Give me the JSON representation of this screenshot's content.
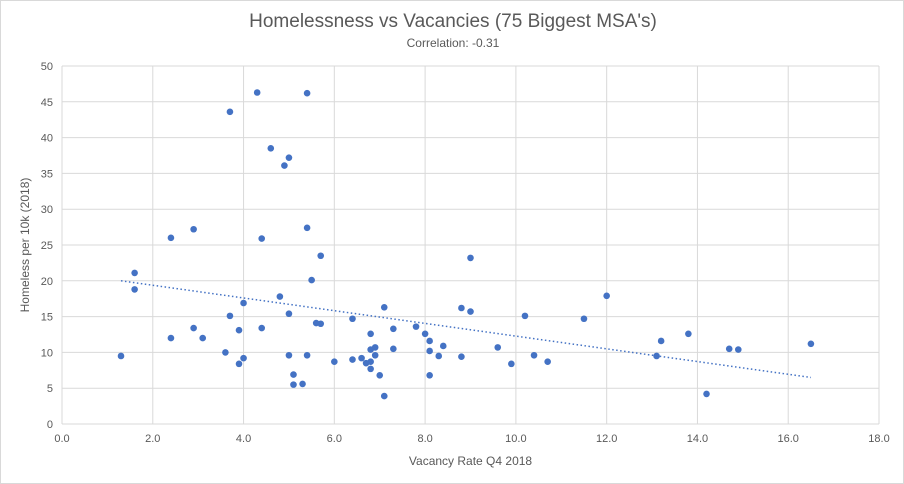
{
  "chart_data": {
    "type": "scatter",
    "title": "Homelessness vs Vacancies (75 Biggest MSA's)",
    "subtitle": "Correlation: -0.31",
    "xlabel": "Vacancy Rate Q4 2018",
    "ylabel": "Homeless per 10k (2018)",
    "xlim": [
      0,
      18
    ],
    "ylim": [
      0,
      50
    ],
    "x_ticks": [
      "0.0",
      "2.0",
      "4.0",
      "6.0",
      "8.0",
      "10.0",
      "12.0",
      "14.0",
      "16.0",
      "18.0"
    ],
    "y_ticks": [
      "0",
      "5",
      "10",
      "15",
      "20",
      "25",
      "30",
      "35",
      "40",
      "45",
      "50"
    ],
    "grid": true,
    "colors": {
      "points": "#4472c4",
      "trendline": "#4472c4",
      "grid": "#d9d9d9",
      "text": "#595959"
    },
    "trendline": {
      "style": "dotted",
      "x": [
        1.3,
        16.5
      ],
      "y": [
        20.0,
        6.5
      ]
    },
    "points": [
      {
        "x": 1.3,
        "y": 9.5
      },
      {
        "x": 1.6,
        "y": 21.1
      },
      {
        "x": 1.6,
        "y": 18.8
      },
      {
        "x": 2.4,
        "y": 26.0
      },
      {
        "x": 2.4,
        "y": 12.0
      },
      {
        "x": 2.9,
        "y": 27.2
      },
      {
        "x": 2.9,
        "y": 13.4
      },
      {
        "x": 3.1,
        "y": 12.0
      },
      {
        "x": 3.6,
        "y": 10.0
      },
      {
        "x": 3.7,
        "y": 43.6
      },
      {
        "x": 3.7,
        "y": 15.1
      },
      {
        "x": 3.9,
        "y": 13.1
      },
      {
        "x": 3.9,
        "y": 8.4
      },
      {
        "x": 4.0,
        "y": 16.9
      },
      {
        "x": 4.0,
        "y": 9.2
      },
      {
        "x": 4.3,
        "y": 46.3
      },
      {
        "x": 4.4,
        "y": 25.9
      },
      {
        "x": 4.4,
        "y": 13.4
      },
      {
        "x": 4.6,
        "y": 38.5
      },
      {
        "x": 4.8,
        "y": 17.8
      },
      {
        "x": 4.9,
        "y": 36.1
      },
      {
        "x": 5.0,
        "y": 37.2
      },
      {
        "x": 5.0,
        "y": 15.4
      },
      {
        "x": 5.0,
        "y": 9.6
      },
      {
        "x": 5.1,
        "y": 6.9
      },
      {
        "x": 5.1,
        "y": 5.5
      },
      {
        "x": 5.3,
        "y": 5.6
      },
      {
        "x": 5.4,
        "y": 46.2
      },
      {
        "x": 5.4,
        "y": 27.4
      },
      {
        "x": 5.4,
        "y": 9.6
      },
      {
        "x": 5.5,
        "y": 20.1
      },
      {
        "x": 5.6,
        "y": 14.1
      },
      {
        "x": 5.7,
        "y": 23.5
      },
      {
        "x": 5.7,
        "y": 14.0
      },
      {
        "x": 6.0,
        "y": 8.7
      },
      {
        "x": 6.4,
        "y": 14.7
      },
      {
        "x": 6.4,
        "y": 9.0
      },
      {
        "x": 6.6,
        "y": 9.2
      },
      {
        "x": 6.7,
        "y": 8.5
      },
      {
        "x": 6.8,
        "y": 12.6
      },
      {
        "x": 6.8,
        "y": 10.4
      },
      {
        "x": 6.8,
        "y": 7.7
      },
      {
        "x": 6.8,
        "y": 8.7
      },
      {
        "x": 6.9,
        "y": 10.7
      },
      {
        "x": 6.9,
        "y": 9.6
      },
      {
        "x": 7.0,
        "y": 6.8
      },
      {
        "x": 7.1,
        "y": 16.3
      },
      {
        "x": 7.1,
        "y": 3.9
      },
      {
        "x": 7.3,
        "y": 13.3
      },
      {
        "x": 7.3,
        "y": 10.5
      },
      {
        "x": 7.8,
        "y": 13.6
      },
      {
        "x": 8.0,
        "y": 12.6
      },
      {
        "x": 8.1,
        "y": 11.6
      },
      {
        "x": 8.1,
        "y": 10.2
      },
      {
        "x": 8.1,
        "y": 6.8
      },
      {
        "x": 8.3,
        "y": 9.5
      },
      {
        "x": 8.4,
        "y": 10.9
      },
      {
        "x": 8.8,
        "y": 16.2
      },
      {
        "x": 8.8,
        "y": 9.4
      },
      {
        "x": 9.0,
        "y": 23.2
      },
      {
        "x": 9.0,
        "y": 15.7
      },
      {
        "x": 9.6,
        "y": 10.7
      },
      {
        "x": 9.9,
        "y": 8.4
      },
      {
        "x": 10.2,
        "y": 15.1
      },
      {
        "x": 10.4,
        "y": 9.6
      },
      {
        "x": 10.7,
        "y": 8.7
      },
      {
        "x": 11.5,
        "y": 14.7
      },
      {
        "x": 12.0,
        "y": 17.9
      },
      {
        "x": 13.1,
        "y": 9.5
      },
      {
        "x": 13.2,
        "y": 11.6
      },
      {
        "x": 13.8,
        "y": 12.6
      },
      {
        "x": 14.2,
        "y": 4.2
      },
      {
        "x": 14.7,
        "y": 10.5
      },
      {
        "x": 14.9,
        "y": 10.4
      },
      {
        "x": 16.5,
        "y": 11.2
      }
    ]
  }
}
